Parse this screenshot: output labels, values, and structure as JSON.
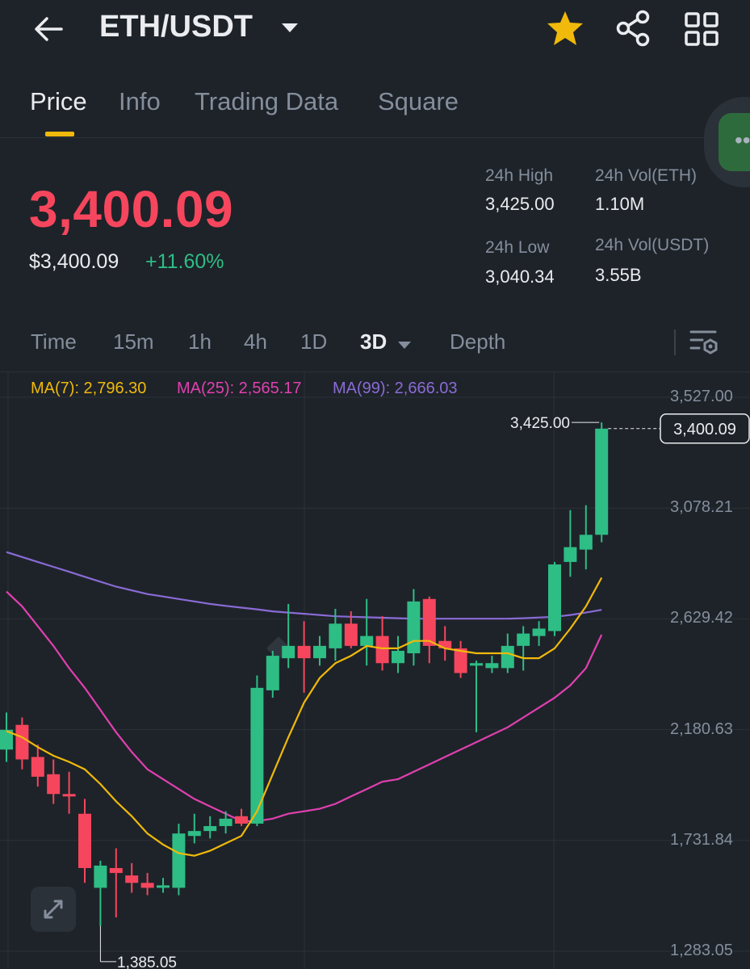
{
  "header": {
    "pair": "ETH/USDT",
    "back_icon": "back-arrow-icon",
    "caret_icon": "caret-down-icon",
    "star_icon": "star-icon",
    "share_icon": "share-icon",
    "grid_icon": "grid-icon",
    "star_color": "#f0b90b"
  },
  "tabs": [
    {
      "label": "Price",
      "active": true
    },
    {
      "label": "Info"
    },
    {
      "label": "Trading Data"
    },
    {
      "label": "Square"
    }
  ],
  "price": {
    "last": "3,400.09",
    "usd": "$3,400.09",
    "change": "+11.60%"
  },
  "stats": {
    "high_label": "24h High",
    "high": "3,425.00",
    "low_label": "24h Low",
    "low": "3,040.34",
    "vol_eth_label": "24h Vol(ETH)",
    "vol_eth": "1.10M",
    "vol_usdt_label": "24h Vol(USDT)",
    "vol_usdt": "3.55B"
  },
  "timeframes": [
    {
      "label": "Time"
    },
    {
      "label": "15m"
    },
    {
      "label": "1h"
    },
    {
      "label": "4h"
    },
    {
      "label": "1D"
    },
    {
      "label": "3D",
      "active": true
    },
    {
      "label": "Depth"
    }
  ],
  "ma": {
    "ma7": "MA(7): 2,796.30",
    "ma25": "MA(25): 2,565.17",
    "ma99": "MA(99): 2,666.03"
  },
  "colors": {
    "up": "#2ebd85",
    "down": "#f6465d",
    "ma7": "#f0b90b",
    "ma25": "#e040b0",
    "ma99": "#8a6bd6"
  },
  "chart_data": {
    "type": "candlestick",
    "y_axis_labels": [
      "3,527.00",
      "3,078.21",
      "2,629.42",
      "2,180.63",
      "1,731.84",
      "1,283.05"
    ],
    "y_axis_values": [
      3527.0,
      3078.21,
      2629.42,
      2180.63,
      1731.84,
      1283.05
    ],
    "high_marker": "3,425.00",
    "low_marker": "1,385.05",
    "last_price_tag": "3,400.09",
    "candles": [
      {
        "o": 2100,
        "h": 2250,
        "l": 2050,
        "c": 2180
      },
      {
        "o": 2200,
        "h": 2230,
        "l": 2020,
        "c": 2060
      },
      {
        "o": 2070,
        "h": 2120,
        "l": 1950,
        "c": 1990
      },
      {
        "o": 2000,
        "h": 2060,
        "l": 1880,
        "c": 1920
      },
      {
        "o": 1920,
        "h": 2010,
        "l": 1840,
        "c": 1910
      },
      {
        "o": 1840,
        "h": 1900,
        "l": 1560,
        "c": 1620
      },
      {
        "o": 1540,
        "h": 1650,
        "l": 1385.05,
        "c": 1630
      },
      {
        "o": 1620,
        "h": 1700,
        "l": 1420,
        "c": 1600
      },
      {
        "o": 1590,
        "h": 1640,
        "l": 1520,
        "c": 1560
      },
      {
        "o": 1560,
        "h": 1600,
        "l": 1510,
        "c": 1540
      },
      {
        "o": 1540,
        "h": 1580,
        "l": 1520,
        "c": 1550
      },
      {
        "o": 1540,
        "h": 1800,
        "l": 1510,
        "c": 1760
      },
      {
        "o": 1750,
        "h": 1840,
        "l": 1720,
        "c": 1770
      },
      {
        "o": 1770,
        "h": 1830,
        "l": 1740,
        "c": 1790
      },
      {
        "o": 1790,
        "h": 1850,
        "l": 1760,
        "c": 1820
      },
      {
        "o": 1830,
        "h": 1860,
        "l": 1790,
        "c": 1800
      },
      {
        "o": 1800,
        "h": 2400,
        "l": 1790,
        "c": 2350
      },
      {
        "o": 2340,
        "h": 2500,
        "l": 2310,
        "c": 2480
      },
      {
        "o": 2470,
        "h": 2690,
        "l": 2430,
        "c": 2520
      },
      {
        "o": 2520,
        "h": 2620,
        "l": 2330,
        "c": 2470
      },
      {
        "o": 2470,
        "h": 2560,
        "l": 2440,
        "c": 2520
      },
      {
        "o": 2510,
        "h": 2670,
        "l": 2460,
        "c": 2610
      },
      {
        "o": 2610,
        "h": 2660,
        "l": 2510,
        "c": 2520
      },
      {
        "o": 2520,
        "h": 2710,
        "l": 2440,
        "c": 2560
      },
      {
        "o": 2560,
        "h": 2640,
        "l": 2420,
        "c": 2450
      },
      {
        "o": 2450,
        "h": 2560,
        "l": 2410,
        "c": 2500
      },
      {
        "o": 2490,
        "h": 2750,
        "l": 2440,
        "c": 2700
      },
      {
        "o": 2710,
        "h": 2720,
        "l": 2450,
        "c": 2520
      },
      {
        "o": 2540,
        "h": 2600,
        "l": 2460,
        "c": 2510
      },
      {
        "o": 2510,
        "h": 2540,
        "l": 2390,
        "c": 2410
      },
      {
        "o": 2440,
        "h": 2460,
        "l": 2170,
        "c": 2450
      },
      {
        "o": 2430,
        "h": 2480,
        "l": 2410,
        "c": 2450
      },
      {
        "o": 2430,
        "h": 2570,
        "l": 2410,
        "c": 2520
      },
      {
        "o": 2520,
        "h": 2600,
        "l": 2420,
        "c": 2570
      },
      {
        "o": 2560,
        "h": 2620,
        "l": 2520,
        "c": 2590
      },
      {
        "o": 2580,
        "h": 2860,
        "l": 2560,
        "c": 2850
      },
      {
        "o": 2860,
        "h": 3070,
        "l": 2800,
        "c": 2920
      },
      {
        "o": 2910,
        "h": 3090,
        "l": 2830,
        "c": 2970
      },
      {
        "o": 2970,
        "h": 3425.0,
        "l": 2940,
        "c": 3400.09
      }
    ],
    "ma7": [
      [
        0,
        2175
      ],
      [
        1,
        2150
      ],
      [
        2,
        2110
      ],
      [
        3,
        2075
      ],
      [
        4,
        2050
      ],
      [
        5,
        2020
      ],
      [
        6,
        1960
      ],
      [
        7,
        1890
      ],
      [
        8,
        1830
      ],
      [
        9,
        1760
      ],
      [
        10,
        1715
      ],
      [
        11,
        1680
      ],
      [
        12,
        1670
      ],
      [
        13,
        1690
      ],
      [
        14,
        1720
      ],
      [
        15,
        1750
      ],
      [
        16,
        1850
      ],
      [
        17,
        2000
      ],
      [
        18,
        2150
      ],
      [
        19,
        2290
      ],
      [
        20,
        2390
      ],
      [
        21,
        2450
      ],
      [
        22,
        2480
      ],
      [
        23,
        2520
      ],
      [
        24,
        2510
      ],
      [
        25,
        2510
      ],
      [
        26,
        2540
      ],
      [
        27,
        2540
      ],
      [
        28,
        2510
      ],
      [
        29,
        2500
      ],
      [
        30,
        2490
      ],
      [
        31,
        2490
      ],
      [
        32,
        2490
      ],
      [
        33,
        2470
      ],
      [
        34,
        2470
      ],
      [
        35,
        2510
      ],
      [
        36,
        2590
      ],
      [
        37,
        2680
      ],
      [
        38,
        2796.3
      ]
    ],
    "ma25": [
      [
        0,
        2740
      ],
      [
        1,
        2680
      ],
      [
        2,
        2600
      ],
      [
        3,
        2520
      ],
      [
        4,
        2430
      ],
      [
        5,
        2350
      ],
      [
        6,
        2260
      ],
      [
        7,
        2170
      ],
      [
        8,
        2090
      ],
      [
        9,
        2020
      ],
      [
        10,
        1980
      ],
      [
        11,
        1940
      ],
      [
        12,
        1900
      ],
      [
        13,
        1870
      ],
      [
        14,
        1840
      ],
      [
        15,
        1810
      ],
      [
        16,
        1810
      ],
      [
        17,
        1820
      ],
      [
        18,
        1840
      ],
      [
        19,
        1850
      ],
      [
        20,
        1860
      ],
      [
        21,
        1880
      ],
      [
        22,
        1910
      ],
      [
        23,
        1940
      ],
      [
        24,
        1970
      ],
      [
        25,
        1980
      ],
      [
        26,
        2010
      ],
      [
        27,
        2040
      ],
      [
        28,
        2070
      ],
      [
        29,
        2100
      ],
      [
        30,
        2130
      ],
      [
        31,
        2160
      ],
      [
        32,
        2190
      ],
      [
        33,
        2230
      ],
      [
        34,
        2270
      ],
      [
        35,
        2310
      ],
      [
        36,
        2360
      ],
      [
        37,
        2430
      ],
      [
        38,
        2565.17
      ]
    ],
    "ma99": [
      [
        0,
        2900
      ],
      [
        1,
        2880
      ],
      [
        2,
        2860
      ],
      [
        3,
        2840
      ],
      [
        4,
        2820
      ],
      [
        5,
        2800
      ],
      [
        6,
        2780
      ],
      [
        7,
        2760
      ],
      [
        8,
        2745
      ],
      [
        9,
        2730
      ],
      [
        10,
        2720
      ],
      [
        11,
        2710
      ],
      [
        12,
        2700
      ],
      [
        13,
        2690
      ],
      [
        14,
        2682
      ],
      [
        15,
        2675
      ],
      [
        16,
        2668
      ],
      [
        17,
        2660
      ],
      [
        18,
        2655
      ],
      [
        19,
        2650
      ],
      [
        20,
        2645
      ],
      [
        21,
        2640
      ],
      [
        22,
        2638
      ],
      [
        23,
        2636
      ],
      [
        24,
        2634
      ],
      [
        25,
        2632
      ],
      [
        26,
        2630
      ],
      [
        27,
        2630
      ],
      [
        28,
        2630
      ],
      [
        29,
        2630
      ],
      [
        30,
        2630
      ],
      [
        31,
        2630
      ],
      [
        32,
        2630
      ],
      [
        33,
        2632
      ],
      [
        34,
        2635
      ],
      [
        35,
        2638
      ],
      [
        36,
        2645
      ],
      [
        37,
        2655
      ],
      [
        38,
        2666.03
      ]
    ]
  }
}
